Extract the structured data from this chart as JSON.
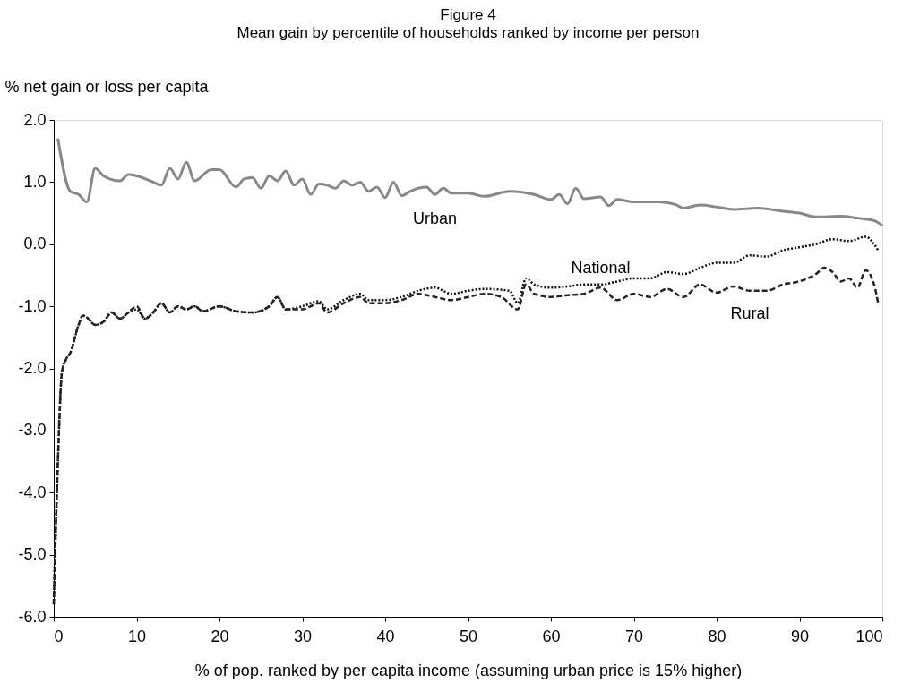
{
  "chart_data": {
    "type": "line",
    "title": "Figure 4",
    "subtitle": "Mean gain by percentile of households ranked by income per person",
    "xlabel": "% of pop. ranked by per capita income (assuming urban price is 15% higher)",
    "ylabel": "% net gain or loss per capita",
    "xlim": [
      0,
      100
    ],
    "ylim": [
      -6,
      2
    ],
    "xticks": [
      0,
      10,
      20,
      30,
      40,
      50,
      60,
      70,
      80,
      90,
      100
    ],
    "yticks": [
      {
        "value": 2,
        "label": "2.0"
      },
      {
        "value": 1,
        "label": "1.0"
      },
      {
        "value": 0,
        "label": "0.0"
      },
      {
        "value": -1,
        "label": "-1.0"
      },
      {
        "value": -2,
        "label": "-2.0"
      },
      {
        "value": -3,
        "label": "-3.0"
      },
      {
        "value": -4,
        "label": "-4.0"
      },
      {
        "value": -5,
        "label": "-5.0"
      },
      {
        "value": -6,
        "label": "-6.0"
      }
    ],
    "grid": false,
    "legend": false,
    "marker": "none",
    "series": [
      {
        "name": "Urban",
        "color": "#888888",
        "line_style": "solid",
        "x": [
          0.5,
          2,
          3,
          4,
          5,
          6,
          8,
          9,
          10,
          12,
          13,
          14,
          15,
          16,
          17,
          19,
          20,
          22,
          23,
          24,
          25,
          26,
          27,
          28,
          29,
          30,
          31,
          32,
          33,
          34,
          35,
          36,
          37,
          38,
          39,
          40,
          41,
          42,
          43,
          44,
          45,
          46,
          47,
          48,
          50,
          52,
          55,
          58,
          60,
          61,
          62,
          63,
          64,
          66,
          67,
          68,
          70,
          73,
          75,
          76,
          78,
          80,
          82,
          85,
          88,
          90,
          92,
          95,
          97,
          99,
          100
        ],
        "values": [
          1.7,
          0.85,
          0.8,
          0.68,
          1.22,
          1.1,
          1.02,
          1.12,
          1.1,
          1.0,
          0.95,
          1.22,
          1.05,
          1.32,
          1.02,
          1.2,
          1.2,
          0.92,
          1.05,
          1.07,
          0.9,
          1.1,
          1.02,
          1.18,
          0.95,
          1.05,
          0.8,
          0.97,
          0.95,
          0.9,
          1.02,
          0.95,
          1.0,
          0.85,
          0.92,
          0.75,
          1.0,
          0.78,
          0.85,
          0.9,
          0.92,
          0.8,
          0.9,
          0.82,
          0.82,
          0.77,
          0.85,
          0.8,
          0.72,
          0.8,
          0.65,
          0.9,
          0.73,
          0.76,
          0.62,
          0.72,
          0.68,
          0.68,
          0.64,
          0.58,
          0.63,
          0.6,
          0.56,
          0.58,
          0.53,
          0.5,
          0.44,
          0.45,
          0.42,
          0.38,
          0.3
        ]
      },
      {
        "name": "National",
        "color": "#111111",
        "line_style": "dotted",
        "x": [
          0,
          0.5,
          1,
          1.5,
          2,
          3,
          3.5,
          4,
          5,
          6,
          7,
          8,
          9,
          10,
          11,
          12,
          13,
          14,
          15,
          16,
          17,
          18,
          20,
          22,
          24,
          26,
          27,
          28,
          30,
          32,
          33,
          35,
          37,
          38,
          40,
          42,
          44,
          46,
          48,
          50,
          52,
          55,
          56,
          57,
          58,
          60,
          62,
          64,
          66,
          68,
          70,
          72,
          74,
          76,
          78,
          80,
          82,
          84,
          86,
          88,
          90,
          92,
          94,
          96,
          98,
          99,
          99.5
        ],
        "values": [
          -5.8,
          -3.5,
          -2.05,
          -1.85,
          -1.75,
          -1.3,
          -1.15,
          -1.18,
          -1.3,
          -1.25,
          -1.1,
          -1.2,
          -1.1,
          -1.05,
          -1.2,
          -1.1,
          -0.95,
          -1.1,
          -1.0,
          -1.05,
          -1.0,
          -1.08,
          -1.0,
          -1.08,
          -1.1,
          -1.0,
          -0.85,
          -1.05,
          -1.0,
          -0.92,
          -1.05,
          -0.9,
          -0.8,
          -0.9,
          -0.9,
          -0.85,
          -0.75,
          -0.7,
          -0.8,
          -0.75,
          -0.72,
          -0.75,
          -0.95,
          -0.55,
          -0.65,
          -0.7,
          -0.68,
          -0.65,
          -0.65,
          -0.6,
          -0.55,
          -0.55,
          -0.45,
          -0.48,
          -0.38,
          -0.3,
          -0.3,
          -0.18,
          -0.2,
          -0.1,
          -0.05,
          0.0,
          0.08,
          0.05,
          0.12,
          0.0,
          -0.1
        ]
      },
      {
        "name": "Rural",
        "color": "#222222",
        "line_style": "dashed",
        "x": [
          0,
          0.5,
          1,
          1.5,
          2,
          3,
          3.5,
          4,
          5,
          6,
          7,
          8,
          9,
          10,
          11,
          12,
          13,
          14,
          15,
          16,
          17,
          18,
          20,
          22,
          24,
          26,
          27,
          28,
          30,
          32,
          33,
          35,
          37,
          38,
          40,
          42,
          44,
          46,
          48,
          50,
          52,
          54,
          56,
          57,
          58,
          60,
          62,
          64,
          66,
          68,
          70,
          72,
          74,
          76,
          78,
          80,
          82,
          84,
          86,
          88,
          90,
          92,
          93,
          94,
          95,
          96,
          97,
          98,
          99,
          99.5
        ],
        "values": [
          -5.8,
          -3.5,
          -2.05,
          -1.85,
          -1.75,
          -1.3,
          -1.15,
          -1.18,
          -1.3,
          -1.25,
          -1.1,
          -1.2,
          -1.1,
          -1.0,
          -1.2,
          -1.1,
          -0.95,
          -1.1,
          -1.0,
          -1.05,
          -1.0,
          -1.08,
          -1.0,
          -1.08,
          -1.1,
          -1.0,
          -0.85,
          -1.05,
          -1.05,
          -0.95,
          -1.1,
          -0.95,
          -0.85,
          -0.95,
          -0.95,
          -0.9,
          -0.8,
          -0.85,
          -0.9,
          -0.85,
          -0.8,
          -0.85,
          -1.05,
          -0.65,
          -0.8,
          -0.85,
          -0.82,
          -0.8,
          -0.7,
          -0.9,
          -0.8,
          -0.85,
          -0.72,
          -0.85,
          -0.65,
          -0.78,
          -0.68,
          -0.75,
          -0.75,
          -0.65,
          -0.6,
          -0.48,
          -0.38,
          -0.45,
          -0.6,
          -0.55,
          -0.7,
          -0.42,
          -0.65,
          -0.95
        ]
      }
    ]
  }
}
